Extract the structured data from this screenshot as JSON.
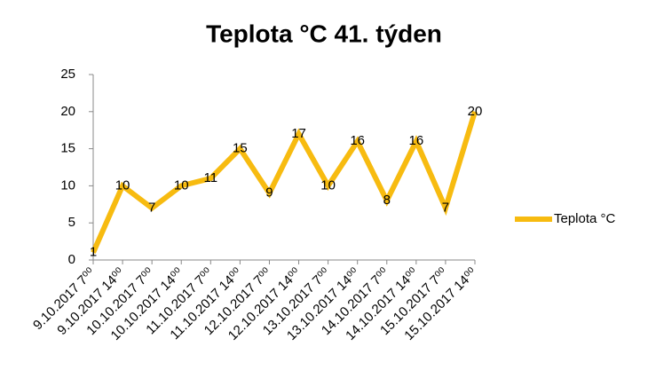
{
  "chart_data": {
    "type": "line",
    "title": "Teplota °C 41. týden",
    "categories": [
      "9.10.2017 7⁰⁰",
      "9.10.2017 14⁰⁰",
      "10.10.2017 7⁰⁰",
      "10.10.2017 14⁰⁰",
      "11.10.2017 7⁰⁰",
      "11.10.2017 14⁰⁰",
      "12.10.2017 7⁰⁰",
      "12.10.2017 14⁰⁰",
      "13.10.2017 7⁰⁰",
      "13.10.2017 14⁰⁰",
      "14.10.2017 7⁰⁰",
      "14.10.2017 14⁰⁰",
      "15.10.2017 7⁰⁰",
      "15.10.2017 14⁰⁰"
    ],
    "series": [
      {
        "name": "Teplota °C",
        "color": "#f7bb10",
        "values": [
          1,
          10,
          7,
          10,
          11,
          15,
          9,
          17,
          10,
          16,
          8,
          16,
          7,
          20
        ]
      }
    ],
    "ylim": [
      0,
      25
    ],
    "yticks": [
      0,
      5,
      10,
      15,
      20,
      25
    ],
    "grid": false,
    "legend": "right"
  }
}
